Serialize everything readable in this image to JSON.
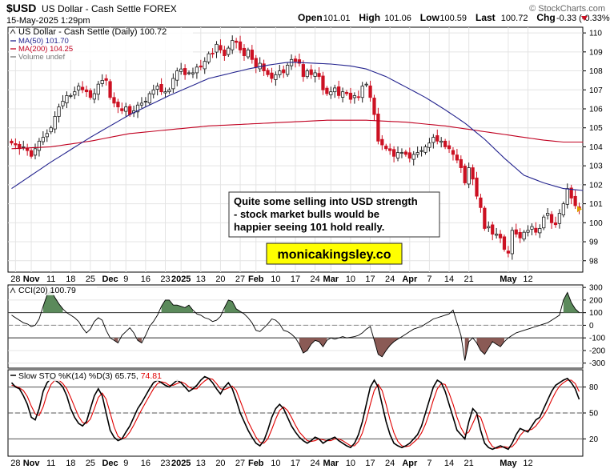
{
  "header": {
    "symbol": "$USD",
    "name": "US Dollar - Cash Settle FOREX",
    "date": "15-May-2025 1:29pm",
    "watermark": "© StockCharts.com",
    "ohlc": [
      {
        "label": "Open",
        "value": "101.01"
      },
      {
        "label": "High",
        "value": "101.06"
      },
      {
        "label": "Low",
        "value": "100.59"
      },
      {
        "label": "Last",
        "value": "100.72"
      },
      {
        "label": "Chg",
        "value": "-0.33 (-0.33%)"
      }
    ]
  },
  "colors": {
    "up": "#1a1a1a",
    "down": "#cc1122",
    "ma50": "#23238e",
    "ma200": "#c00020",
    "cci_pos": "#5b8a5b",
    "cci_neg": "#8a5a55",
    "sto_k": "#000000",
    "sto_d": "#e00000",
    "grid": "#e4e4e4"
  },
  "annotation": {
    "lines": [
      "Quite some selling into USD strength",
      "- stock market bulls would be",
      "happier seeing 101 hold really."
    ],
    "brand": "monicakingsley.co",
    "brand_bg": "#ffff00"
  },
  "chart_data": [
    {
      "type": "candlestick",
      "title": "US Dollar - Cash Settle (Daily) 100.72",
      "legend": [
        {
          "label": "MA(50) 101.70",
          "color": "#23238e"
        },
        {
          "label": "MA(200) 104.25",
          "color": "#c00020"
        },
        {
          "label": "Volume undef",
          "color": "#777777"
        }
      ],
      "ylim": [
        97.4,
        110.3
      ],
      "yticks": [
        98,
        99,
        100,
        101,
        102,
        103,
        104,
        105,
        106,
        107,
        108,
        109,
        110
      ],
      "x_labels": [
        "28",
        "Nov",
        "11",
        "18",
        "25",
        "Dec",
        "9",
        "16",
        "23",
        "2025",
        "13",
        "20",
        "27",
        "Feb",
        "10",
        "17",
        "24",
        "Mar",
        "10",
        "17",
        "24",
        "Apr",
        "7",
        "14",
        "21",
        "May",
        "12"
      ],
      "bold_labels": [
        "Nov",
        "Dec",
        "2025",
        "Feb",
        "Mar",
        "Apr",
        "May"
      ],
      "last": 100.72,
      "ma50_last": 101.7,
      "ma200_last": 104.25,
      "closes": [
        104.2,
        104.1,
        103.9,
        104.0,
        103.8,
        103.5,
        103.9,
        104.3,
        104.5,
        104.7,
        105.0,
        105.6,
        106.1,
        106.4,
        106.7,
        106.7,
        106.9,
        107.2,
        107.0,
        106.9,
        106.6,
        106.8,
        107.3,
        107.5,
        107.5,
        106.6,
        106.3,
        106.1,
        105.9,
        106.1,
        105.7,
        105.9,
        106.2,
        106.3,
        106.4,
        106.8,
        107.0,
        107.2,
        106.9,
        106.9,
        107.0,
        107.6,
        108.0,
        108.1,
        107.8,
        107.9,
        107.9,
        108.2,
        108.2,
        108.5,
        108.9,
        108.9,
        109.4,
        109.1,
        108.8,
        109.2,
        109.6,
        109.5,
        109.1,
        108.8,
        109.1,
        108.6,
        108.2,
        108.4,
        108.0,
        107.8,
        107.6,
        107.8,
        108.0,
        107.9,
        108.3,
        108.6,
        108.5,
        108.4,
        107.7,
        108.0,
        107.8,
        107.9,
        107.7,
        107.0,
        106.8,
        106.9,
        107.1,
        106.7,
        106.9,
        106.8,
        106.5,
        106.7,
        106.6,
        107.2,
        107.3,
        106.6,
        105.7,
        104.3,
        104.1,
        103.9,
        103.8,
        103.5,
        103.7,
        103.7,
        103.6,
        103.4,
        103.6,
        103.7,
        103.8,
        104.0,
        104.2,
        104.5,
        104.3,
        104.3,
        104.0,
        103.9,
        103.6,
        103.3,
        102.9,
        102.1,
        102.9,
        102.3,
        101.4,
        100.8,
        99.7,
        99.8,
        99.4,
        99.4,
        99.2,
        98.6,
        98.4,
        99.6,
        99.4,
        99.2,
        99.5,
        99.6,
        99.8,
        99.5,
        99.7,
        100.3,
        100.5,
        100.0,
        99.9,
        100.5,
        101.0,
        101.8,
        101.3,
        100.9,
        100.72
      ],
      "ma50": [
        101.8,
        101.94,
        102.08,
        102.22,
        102.36,
        102.5,
        102.64,
        102.78,
        102.92,
        103.06,
        103.2,
        103.33,
        103.46,
        103.59,
        103.72,
        103.85,
        103.98,
        104.11,
        104.24,
        104.37,
        104.5,
        104.62,
        104.74,
        104.86,
        104.98,
        105.1,
        105.22,
        105.34,
        105.46,
        105.58,
        105.7,
        105.8,
        105.9,
        106.0,
        106.1,
        106.2,
        106.3,
        106.4,
        106.5,
        106.6,
        106.7,
        106.79,
        106.88,
        106.97,
        107.06,
        107.15,
        107.24,
        107.33,
        107.42,
        107.51,
        107.6,
        107.65,
        107.7,
        107.75,
        107.8,
        107.85,
        107.9,
        107.95,
        108.0,
        108.05,
        108.1,
        108.14,
        108.18,
        108.22,
        108.26,
        108.3,
        108.33,
        108.36,
        108.39,
        108.42,
        108.45,
        108.45,
        108.45,
        108.44,
        108.43,
        108.42,
        108.41,
        108.4,
        108.39,
        108.38,
        108.37,
        108.36,
        108.34,
        108.32,
        108.3,
        108.28,
        108.26,
        108.22,
        108.18,
        108.14,
        108.1,
        108.02,
        107.94,
        107.86,
        107.78,
        107.7,
        107.59,
        107.48,
        107.37,
        107.26,
        107.15,
        107.04,
        106.93,
        106.82,
        106.71,
        106.6,
        106.47,
        106.34,
        106.21,
        106.08,
        105.95,
        105.81,
        105.67,
        105.53,
        105.39,
        105.25,
        105.08,
        104.91,
        104.74,
        104.57,
        104.4,
        104.2,
        104.0,
        103.8,
        103.6,
        103.4,
        103.22,
        103.04,
        102.86,
        102.68,
        102.5,
        102.42,
        102.34,
        102.26,
        102.18,
        102.1,
        102.04,
        101.98,
        101.92,
        101.86,
        101.8,
        101.78,
        101.76,
        101.74,
        101.72,
        101.7
      ],
      "ma200": [
        103.9,
        103.91,
        103.92,
        103.93,
        103.94,
        103.95,
        103.96,
        103.97,
        103.98,
        103.99,
        104.0,
        104.03,
        104.06,
        104.09,
        104.12,
        104.15,
        104.18,
        104.21,
        104.24,
        104.27,
        104.3,
        104.34,
        104.38,
        104.42,
        104.46,
        104.5,
        104.54,
        104.58,
        104.62,
        104.66,
        104.7,
        104.72,
        104.74,
        104.76,
        104.78,
        104.8,
        104.82,
        104.84,
        104.86,
        104.88,
        104.9,
        104.92,
        104.94,
        104.96,
        104.98,
        105.0,
        105.02,
        105.04,
        105.06,
        105.08,
        105.1,
        105.11,
        105.12,
        105.13,
        105.14,
        105.15,
        105.16,
        105.17,
        105.18,
        105.19,
        105.2,
        105.21,
        105.22,
        105.23,
        105.24,
        105.25,
        105.26,
        105.27,
        105.28,
        105.29,
        105.3,
        105.31,
        105.32,
        105.33,
        105.34,
        105.35,
        105.36,
        105.37,
        105.38,
        105.39,
        105.4,
        105.4,
        105.4,
        105.4,
        105.4,
        105.4,
        105.4,
        105.4,
        105.4,
        105.4,
        105.4,
        105.39,
        105.38,
        105.37,
        105.36,
        105.35,
        105.34,
        105.33,
        105.32,
        105.31,
        105.3,
        105.28,
        105.26,
        105.24,
        105.22,
        105.2,
        105.18,
        105.16,
        105.14,
        105.12,
        105.1,
        105.07,
        105.04,
        105.01,
        104.98,
        104.95,
        104.92,
        104.89,
        104.86,
        104.83,
        104.8,
        104.77,
        104.74,
        104.71,
        104.68,
        104.65,
        104.62,
        104.59,
        104.56,
        104.53,
        104.5,
        104.47,
        104.44,
        104.41,
        104.38,
        104.35,
        104.33,
        104.31,
        104.29,
        104.27,
        104.25,
        104.25,
        104.25,
        104.25,
        104.25,
        104.25
      ]
    },
    {
      "type": "line",
      "title": "CCI(20) 100.79",
      "ylim": [
        -340,
        320
      ],
      "yticks": [
        -300,
        -200,
        -100,
        0,
        100,
        200,
        300
      ],
      "ref_lines": [
        100,
        0,
        -100
      ],
      "values": [
        80,
        60,
        40,
        20,
        10,
        -10,
        0,
        50,
        150,
        240,
        280,
        220,
        170,
        130,
        100,
        80,
        60,
        30,
        -20,
        -60,
        -30,
        30,
        60,
        40,
        -40,
        -100,
        -120,
        -140,
        -80,
        -50,
        -20,
        -60,
        -120,
        -140,
        -80,
        -10,
        30,
        80,
        150,
        200,
        200,
        160,
        160,
        150,
        140,
        160,
        120,
        90,
        80,
        60,
        50,
        30,
        40,
        70,
        140,
        200,
        190,
        130,
        110,
        90,
        60,
        20,
        -40,
        -50,
        -20,
        10,
        50,
        40,
        10,
        -40,
        -50,
        -70,
        -100,
        -150,
        -220,
        -200,
        -150,
        -120,
        -130,
        -170,
        -120,
        -100,
        -110,
        -100,
        -90,
        -100,
        -95,
        -90,
        -80,
        -60,
        -30,
        -10,
        -120,
        -230,
        -250,
        -200,
        -160,
        -130,
        -110,
        -90,
        -70,
        -50,
        -30,
        -20,
        -10,
        10,
        30,
        50,
        60,
        70,
        80,
        90,
        120,
        20,
        -80,
        -280,
        -130,
        -100,
        -140,
        -200,
        -230,
        -180,
        -130,
        -150,
        -170,
        -130,
        -100,
        -80,
        -60,
        -50,
        -40,
        -30,
        -20,
        -10,
        0,
        10,
        20,
        40,
        60,
        80,
        200,
        260,
        180,
        130,
        101
      ],
      "x_labels": [
        "28",
        "Nov",
        "11",
        "18",
        "25",
        "Dec",
        "9",
        "16",
        "23",
        "2025",
        "13",
        "20",
        "27",
        "Feb",
        "10",
        "17",
        "24",
        "Mar",
        "10",
        "17",
        "24",
        "Apr",
        "7",
        "14",
        "21",
        "May",
        "12"
      ]
    },
    {
      "type": "line",
      "title": "Slow STO %K(14) %D(3) 65.75, 74.81",
      "ylim": [
        0,
        100
      ],
      "yticks": [
        20,
        50,
        80
      ],
      "ref_lines": [
        80,
        50,
        20
      ],
      "series": [
        {
          "name": "%K(14)",
          "values": [
            85,
            80,
            78,
            70,
            60,
            45,
            42,
            55,
            75,
            85,
            90,
            88,
            85,
            80,
            70,
            55,
            45,
            38,
            35,
            40,
            55,
            70,
            78,
            70,
            50,
            30,
            22,
            18,
            20,
            28,
            35,
            45,
            55,
            62,
            70,
            78,
            85,
            88,
            85,
            82,
            80,
            84,
            88,
            85,
            80,
            75,
            78,
            82,
            88,
            92,
            90,
            85,
            78,
            72,
            80,
            85,
            78,
            65,
            50,
            40,
            30,
            22,
            15,
            12,
            18,
            30,
            45,
            55,
            60,
            55,
            45,
            35,
            28,
            22,
            18,
            15,
            18,
            22,
            20,
            15,
            18,
            20,
            22,
            18,
            15,
            12,
            10,
            15,
            25,
            40,
            60,
            80,
            88,
            80,
            60,
            40,
            25,
            15,
            12,
            10,
            12,
            15,
            20,
            25,
            35,
            50,
            65,
            80,
            88,
            85,
            75,
            60,
            45,
            30,
            25,
            20,
            40,
            55,
            50,
            30,
            15,
            10,
            8,
            10,
            12,
            10,
            8,
            15,
            25,
            32,
            30,
            28,
            35,
            42,
            45,
            55,
            65,
            75,
            82,
            85,
            88,
            90,
            85,
            78,
            65.75
          ]
        },
        {
          "name": "%D(3)",
          "values": [
            82,
            81,
            79,
            76,
            69,
            58,
            49,
            47,
            57,
            72,
            83,
            88,
            88,
            84,
            78,
            68,
            57,
            46,
            39,
            38,
            43,
            55,
            68,
            73,
            66,
            50,
            34,
            23,
            20,
            22,
            28,
            36,
            45,
            54,
            62,
            70,
            78,
            84,
            86,
            85,
            82,
            82,
            84,
            86,
            84,
            80,
            78,
            78,
            83,
            87,
            90,
            89,
            84,
            78,
            77,
            79,
            81,
            76,
            64,
            52,
            40,
            31,
            22,
            16,
            15,
            20,
            31,
            43,
            53,
            57,
            53,
            45,
            36,
            28,
            23,
            18,
            17,
            18,
            20,
            19,
            18,
            18,
            20,
            20,
            18,
            15,
            12,
            12,
            17,
            27,
            42,
            60,
            76,
            83,
            76,
            60,
            42,
            27,
            17,
            12,
            11,
            12,
            16,
            20,
            27,
            37,
            50,
            65,
            78,
            84,
            83,
            73,
            60,
            45,
            33,
            25,
            28,
            38,
            48,
            45,
            32,
            18,
            11,
            9,
            10,
            11,
            10,
            11,
            16,
            24,
            29,
            30,
            31,
            35,
            41,
            47,
            55,
            65,
            74,
            81,
            85,
            88,
            88,
            84,
            74.81
          ]
        }
      ],
      "x_labels": [
        "28",
        "Nov",
        "11",
        "18",
        "25",
        "Dec",
        "9",
        "16",
        "23",
        "2025",
        "13",
        "20",
        "27",
        "Feb",
        "10",
        "17",
        "24",
        "Mar",
        "10",
        "17",
        "24",
        "Apr",
        "7",
        "14",
        "21",
        "May",
        "12"
      ]
    }
  ]
}
